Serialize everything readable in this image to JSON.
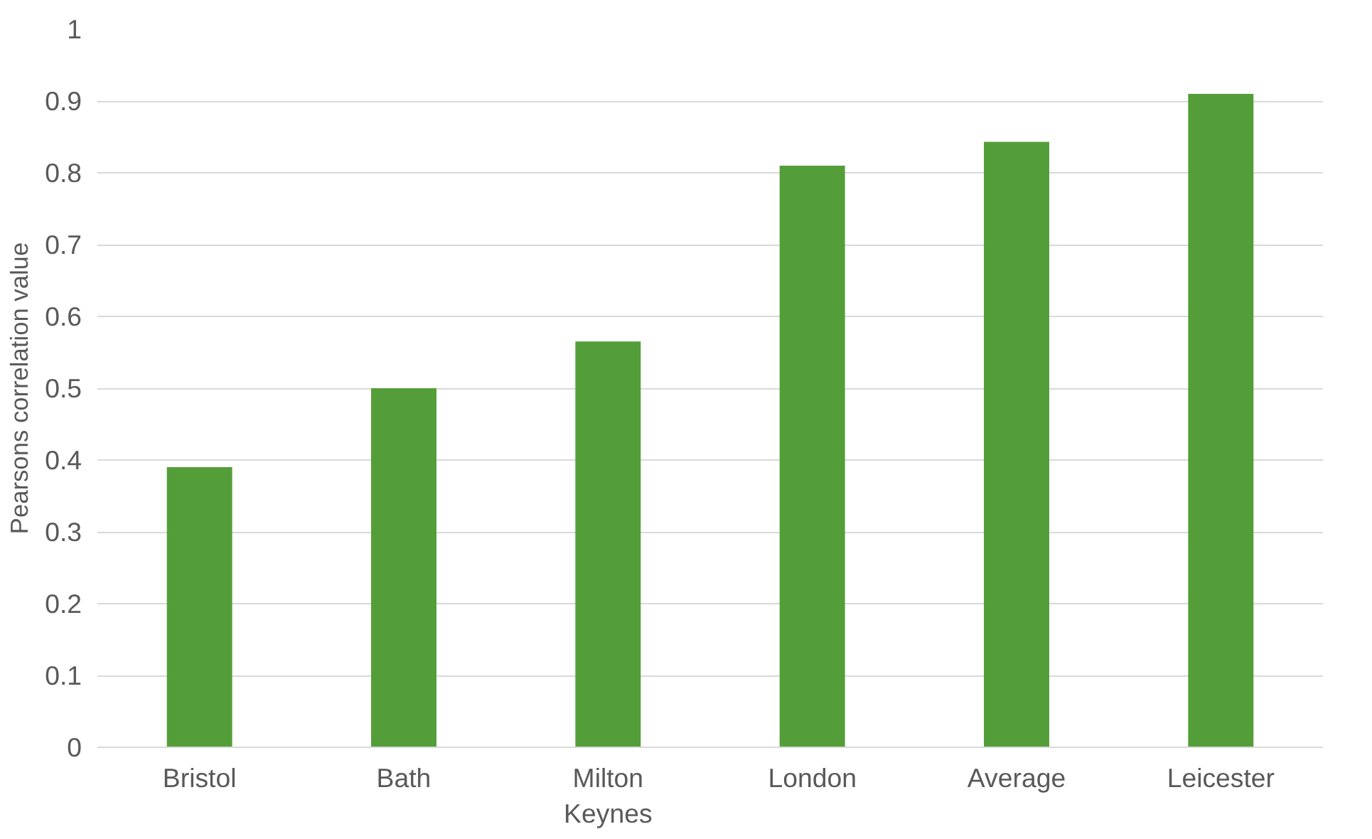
{
  "chart_data": {
    "type": "bar",
    "ylabel": "Pearsons correlation value",
    "categories": [
      "Bristol",
      "Bath",
      "Milton Keynes",
      "London",
      "Average",
      "Leicester"
    ],
    "values": [
      0.39,
      0.5,
      0.565,
      0.81,
      0.843,
      0.91
    ],
    "color": "#549e39",
    "ylim": [
      0,
      1
    ],
    "yticks": [
      0,
      0.1,
      0.2,
      0.3,
      0.4,
      0.5,
      0.6,
      0.7,
      0.8,
      0.9,
      1
    ],
    "grid": "y"
  }
}
